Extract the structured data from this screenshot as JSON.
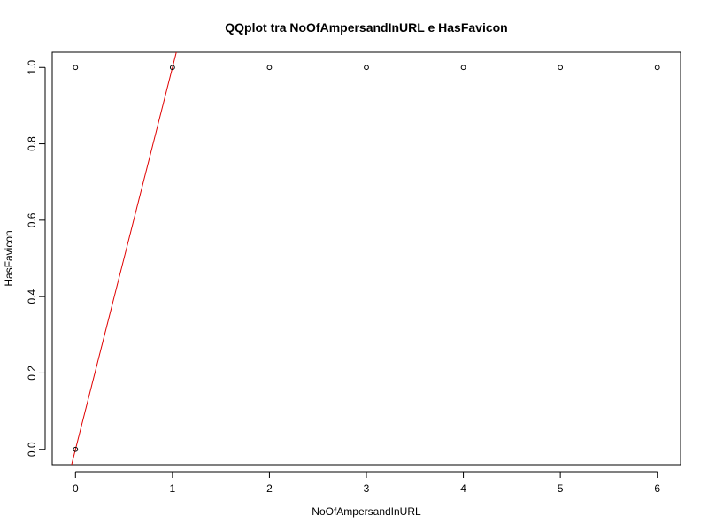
{
  "chart_data": {
    "type": "scatter",
    "title": "QQplot tra NoOfAmpersandInURL e HasFavicon",
    "xlabel": "NoOfAmpersandInURL",
    "ylabel": "HasFavicon",
    "xlim": [
      -0.24,
      6.24
    ],
    "ylim": [
      -0.04,
      1.04
    ],
    "x_ticks": [
      0,
      1,
      2,
      3,
      4,
      5,
      6
    ],
    "x_tick_labels": [
      "0",
      "1",
      "2",
      "3",
      "4",
      "5",
      "6"
    ],
    "y_ticks": [
      0,
      0.2,
      0.4,
      0.6,
      0.8,
      1.0
    ],
    "y_tick_labels": [
      "0.0",
      "0.2",
      "0.4",
      "0.6",
      "0.8",
      "1.0"
    ],
    "grid": false,
    "points": [
      {
        "x": 0,
        "y": 0
      },
      {
        "x": 0,
        "y": 1
      },
      {
        "x": 1,
        "y": 1
      },
      {
        "x": 2,
        "y": 1
      },
      {
        "x": 3,
        "y": 1
      },
      {
        "x": 4,
        "y": 1
      },
      {
        "x": 5,
        "y": 1
      },
      {
        "x": 6,
        "y": 1
      }
    ],
    "reference_line": {
      "intercept": 0,
      "slope": 1,
      "color": "#e00000"
    },
    "point_color": "#000000"
  }
}
